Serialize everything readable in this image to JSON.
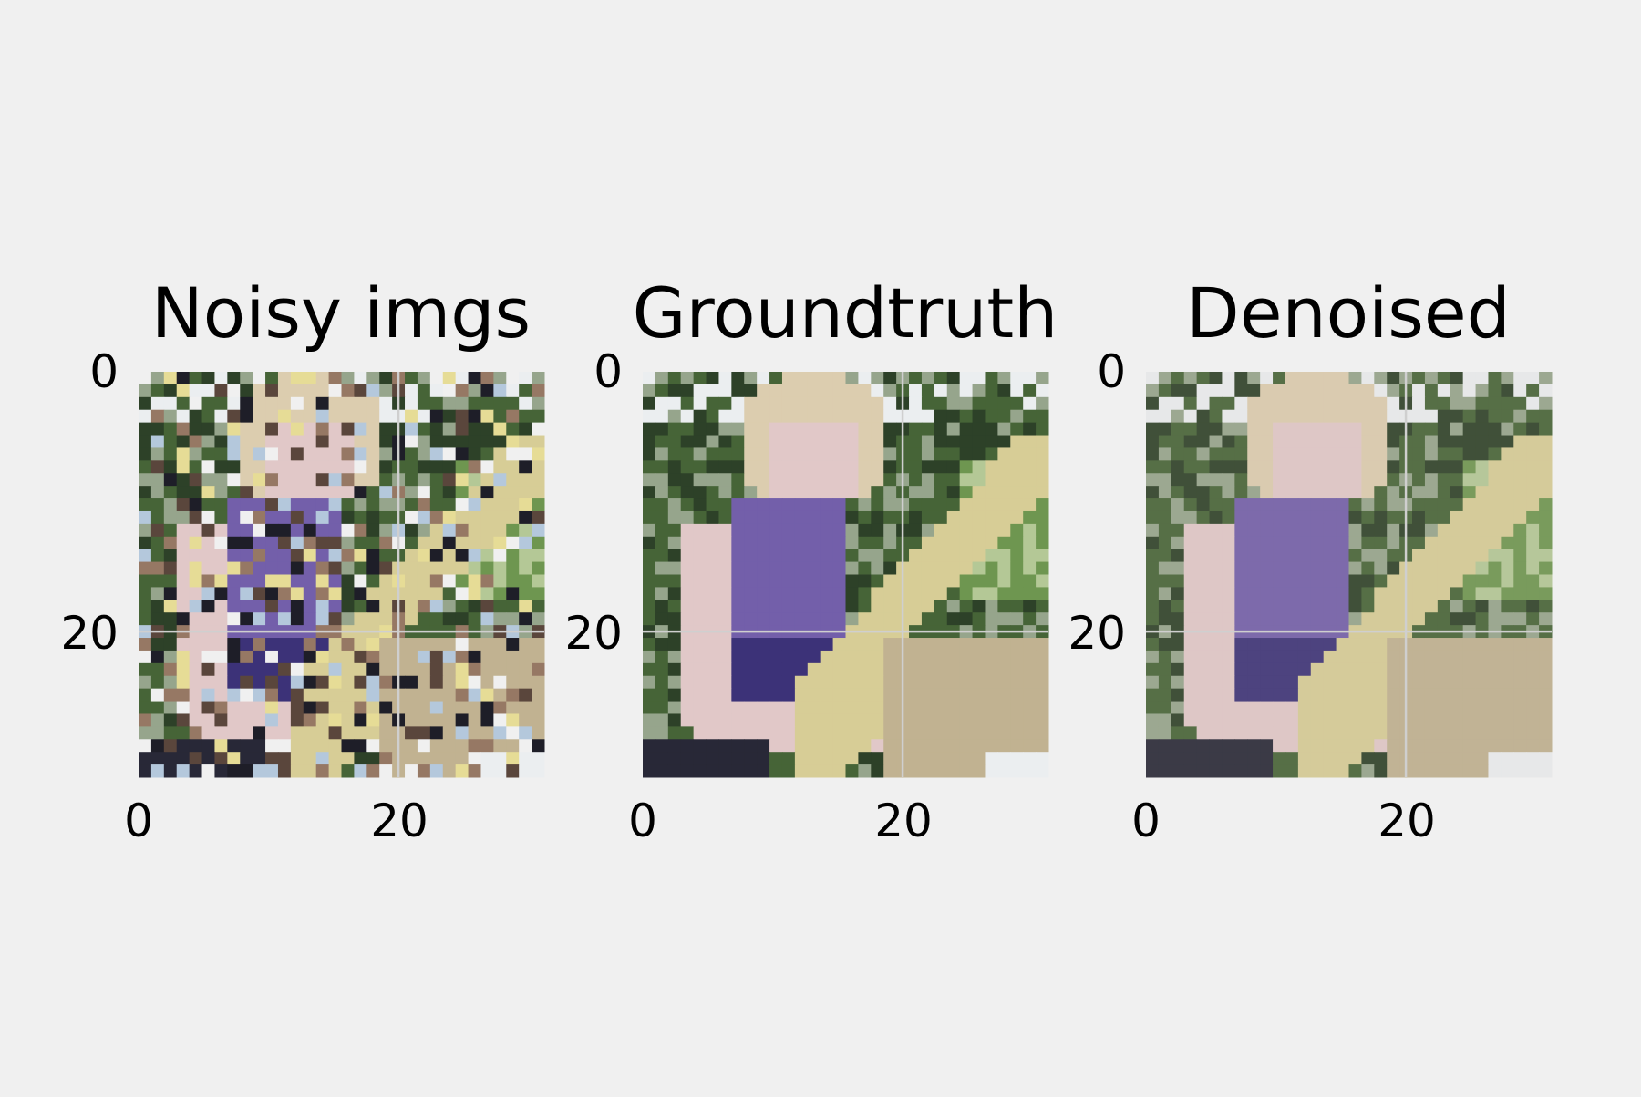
{
  "chart_data": [
    {
      "type": "heatmap",
      "title": "Noisy imgs",
      "xlabel": "",
      "ylabel": "",
      "xlim": [
        0,
        31
      ],
      "ylim": [
        0,
        31
      ],
      "xticks": [
        0,
        20
      ],
      "yticks": [
        0,
        20
      ],
      "grid": true,
      "image_size": [
        32,
        32
      ],
      "content": "noisy"
    },
    {
      "type": "heatmap",
      "title": "Groundtruth",
      "xlabel": "",
      "ylabel": "",
      "xlim": [
        0,
        31
      ],
      "ylim": [
        0,
        31
      ],
      "xticks": [
        0,
        20
      ],
      "yticks": [
        0,
        20
      ],
      "grid": true,
      "image_size": [
        32,
        32
      ],
      "content": "clean"
    },
    {
      "type": "heatmap",
      "title": "Denoised",
      "xlabel": "",
      "ylabel": "",
      "xlim": [
        0,
        31
      ],
      "ylim": [
        0,
        31
      ],
      "xticks": [
        0,
        20
      ],
      "yticks": [
        0,
        20
      ],
      "grid": true,
      "image_size": [
        32,
        32
      ],
      "content": "denoised"
    }
  ],
  "colors": {
    "background": "#f0f0f0",
    "grid": "#cfcfcf",
    "text": "#000000"
  }
}
